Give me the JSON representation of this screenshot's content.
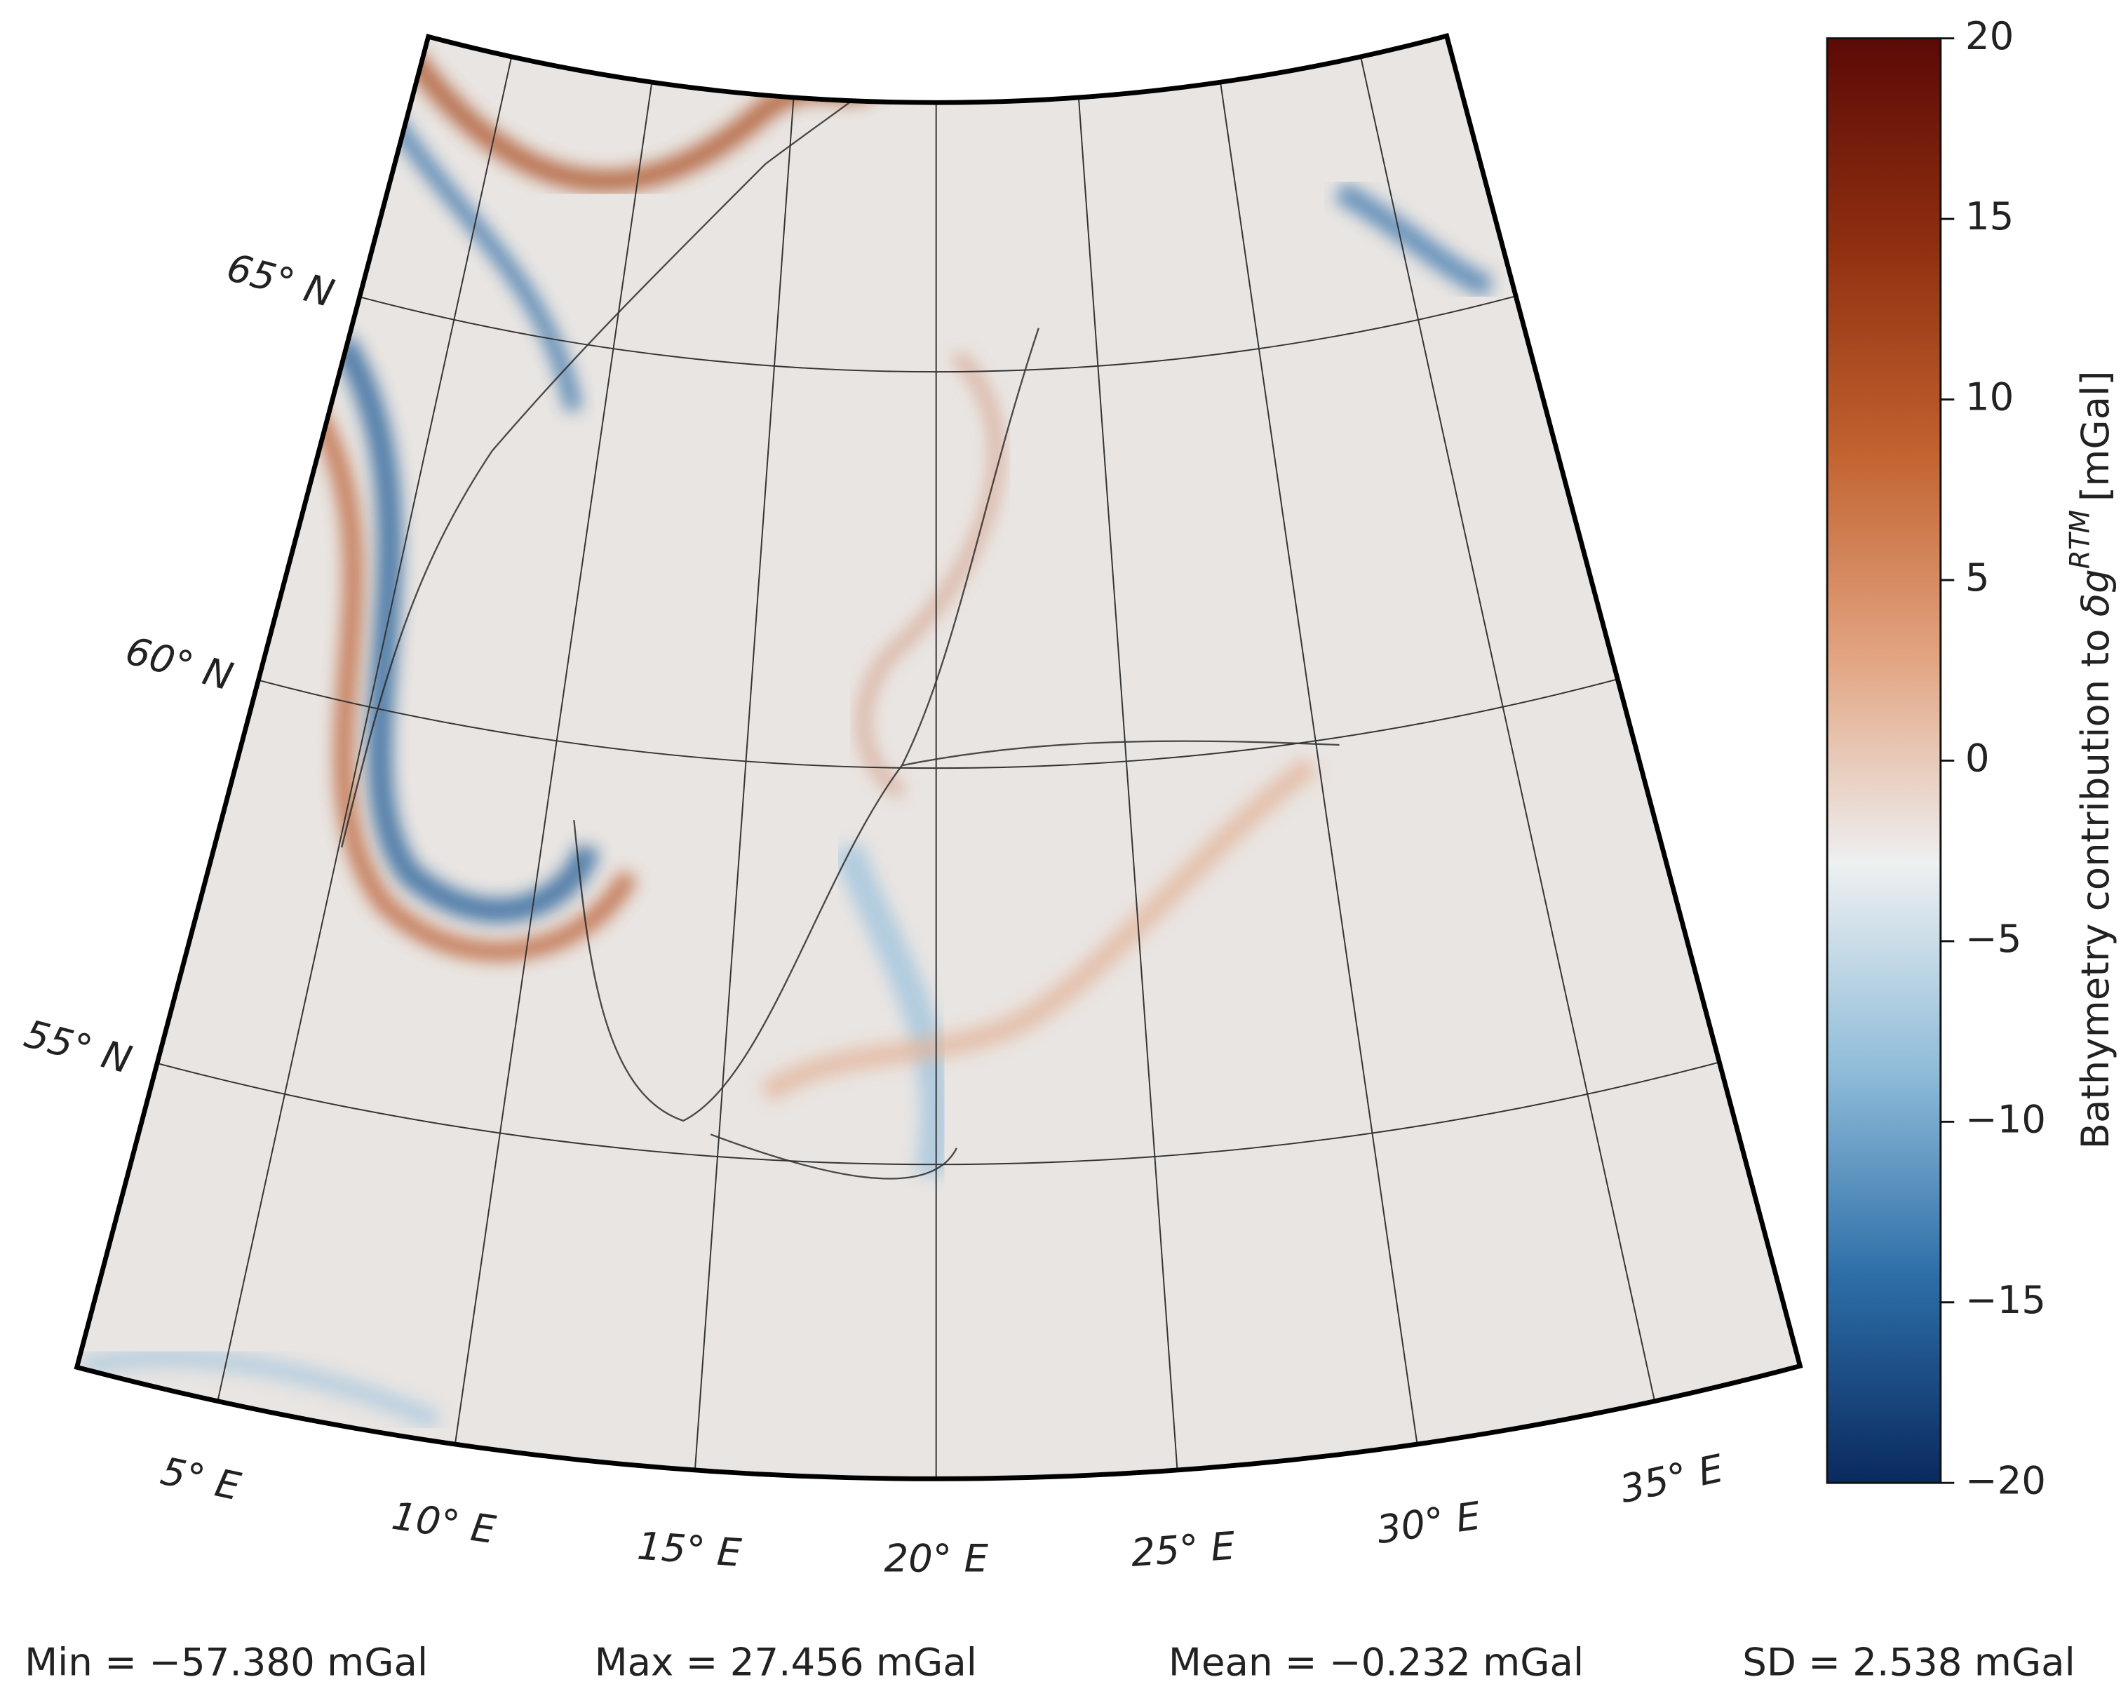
{
  "map": {
    "parallels": [
      {
        "value": 65,
        "label": "65° N"
      },
      {
        "value": 60,
        "label": "60° N"
      },
      {
        "value": 55,
        "label": "55° N"
      }
    ],
    "meridians": [
      {
        "value": 5,
        "label": "5° E"
      },
      {
        "value": 10,
        "label": "10° E"
      },
      {
        "value": 15,
        "label": "15° E"
      },
      {
        "value": 20,
        "label": "20° E"
      },
      {
        "value": 25,
        "label": "25° E"
      },
      {
        "value": 30,
        "label": "30° E"
      },
      {
        "value": 35,
        "label": "35° E"
      }
    ],
    "colorbar": {
      "label_prefix": "Bathymetry contribution to ",
      "symbol": "δg",
      "superscript": "RTM",
      "unit": "[mGal]",
      "lim": [
        -20,
        20
      ],
      "ticks": [
        20,
        15,
        10,
        5,
        0,
        {
          "value": -5,
          "label": "−5"
        },
        {
          "value": -10,
          "label": "−10"
        },
        {
          "value": -15,
          "label": "−15"
        },
        {
          "value": -20,
          "label": "−20"
        }
      ],
      "colors": [
        "#0a2a5e",
        "#2d6ea8",
        "#8fbcd9",
        "#eef0f1",
        "#e2a481",
        "#c2622f",
        "#8f2f10",
        "#5c0a07"
      ]
    },
    "stats": [
      "Min = −57.380 mGal",
      "Max = 27.456 mGal",
      "Mean = −0.232 mGal",
      "SD = 2.538 mGal"
    ]
  }
}
